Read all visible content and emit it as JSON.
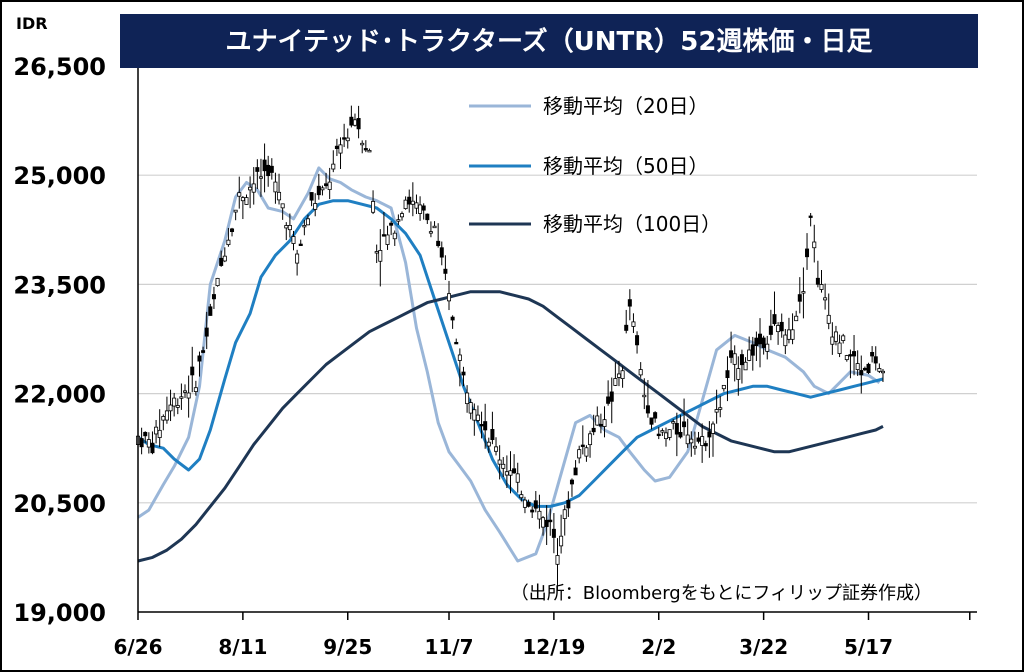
{
  "chart_data": {
    "type": "candlestick",
    "title": "ユナイテッド･トラクターズ（UNTR）52週株価・日足",
    "unit_label": "IDR",
    "source_note": "（出所：Bloombergをもとにフィリップ証券作成）",
    "ylim": [
      19000,
      26500
    ],
    "y_ticks": [
      "26,500",
      "25,000",
      "23,500",
      "22,000",
      "20,500",
      "19,000"
    ],
    "y_tick_values": [
      26500,
      25000,
      23500,
      22000,
      20500,
      19000
    ],
    "x_range": [
      0,
      232
    ],
    "x_ticks": [
      "6/26",
      "8/11",
      "9/25",
      "11/7",
      "12/19",
      "2/2",
      "3/22",
      "5/17"
    ],
    "x_tick_positions": [
      0,
      29,
      58,
      86,
      115,
      144,
      173,
      202
    ],
    "grid": true,
    "legend": [
      {
        "name": "移動平均（20日）",
        "color": "#9ab6d8"
      },
      {
        "name": "移動平均（50日）",
        "color": "#1f7fc2"
      },
      {
        "name": "移動平均（100日）",
        "color": "#1e3654"
      }
    ],
    "price_series": {
      "name": "UNTR close",
      "x": [
        0,
        4,
        8,
        12,
        16,
        20,
        24,
        28,
        32,
        36,
        40,
        44,
        48,
        52,
        56,
        60,
        64,
        66,
        70,
        74,
        78,
        82,
        86,
        88,
        90,
        94,
        98,
        102,
        106,
        110,
        114,
        116,
        118,
        122,
        126,
        130,
        134,
        136,
        140,
        144,
        148,
        152,
        156,
        160,
        164,
        168,
        172,
        176,
        180,
        184,
        186,
        188,
        192,
        196,
        200,
        204,
        206
      ],
      "values": [
        21400,
        21300,
        21800,
        22000,
        22200,
        23000,
        24000,
        24700,
        24900,
        25100,
        24600,
        23900,
        24600,
        24800,
        25400,
        25800,
        25300,
        24000,
        24200,
        24700,
        24500,
        24300,
        23300,
        22800,
        22200,
        21800,
        21300,
        21000,
        20700,
        20400,
        20200,
        19900,
        20300,
        21200,
        21500,
        21800,
        22400,
        23200,
        22000,
        21400,
        21500,
        21500,
        21300,
        21700,
        22400,
        22500,
        22700,
        22900,
        22800,
        23500,
        24500,
        23600,
        22900,
        22600,
        22300,
        22500,
        22200
      ]
    },
    "series": [
      {
        "name": "移動平均（20日）",
        "x": [
          0,
          3,
          7,
          10,
          14,
          17,
          20,
          24,
          27,
          30,
          33,
          36,
          40,
          43,
          47,
          50,
          53,
          56,
          59,
          63,
          66,
          70,
          74,
          77,
          80,
          83,
          86,
          89,
          92,
          96,
          100,
          105,
          110,
          113,
          117,
          121,
          125,
          129,
          133,
          136,
          140,
          143,
          147,
          152,
          156,
          160,
          165,
          170,
          174,
          179,
          184,
          187,
          191,
          194,
          197,
          202,
          205
        ],
        "values": [
          20300,
          20400,
          20750,
          21000,
          21400,
          22100,
          23500,
          24100,
          24700,
          24900,
          24800,
          24550,
          24500,
          24400,
          24750,
          25100,
          24950,
          24900,
          24800,
          24700,
          24650,
          24550,
          23800,
          22900,
          22300,
          21600,
          21200,
          21000,
          20800,
          20400,
          20100,
          19700,
          19800,
          20200,
          20900,
          21600,
          21700,
          21500,
          21400,
          21200,
          20950,
          20800,
          20850,
          21200,
          21900,
          22600,
          22800,
          22700,
          22600,
          22500,
          22300,
          22100,
          22000,
          22150,
          22300,
          22250,
          22150
        ]
      },
      {
        "name": "移動平均（50日）",
        "x": [
          0,
          3,
          7,
          10,
          14,
          17,
          20,
          24,
          27,
          31,
          34,
          38,
          42,
          46,
          50,
          54,
          58,
          62,
          66,
          70,
          74,
          78,
          82,
          86,
          90,
          94,
          98,
          102,
          106,
          110,
          114,
          118,
          122,
          126,
          130,
          134,
          138,
          142,
          146,
          150,
          154,
          158,
          162,
          166,
          170,
          174,
          178,
          182,
          186,
          190,
          194,
          198,
          202,
          206
        ],
        "values": [
          21400,
          21300,
          21250,
          21100,
          20950,
          21100,
          21500,
          22200,
          22700,
          23100,
          23600,
          23900,
          24100,
          24400,
          24600,
          24650,
          24650,
          24600,
          24550,
          24400,
          24200,
          23900,
          23300,
          22700,
          22100,
          21600,
          21100,
          20750,
          20550,
          20450,
          20450,
          20500,
          20600,
          20800,
          21000,
          21200,
          21400,
          21500,
          21600,
          21700,
          21800,
          21900,
          22000,
          22050,
          22100,
          22100,
          22050,
          22000,
          21950,
          22000,
          22050,
          22100,
          22150,
          22200
        ]
      },
      {
        "name": "移動平均（100日）",
        "x": [
          0,
          4,
          8,
          12,
          16,
          20,
          24,
          28,
          32,
          36,
          40,
          44,
          48,
          52,
          56,
          60,
          64,
          68,
          72,
          76,
          80,
          84,
          88,
          92,
          96,
          100,
          104,
          108,
          112,
          116,
          120,
          124,
          128,
          132,
          136,
          140,
          144,
          148,
          152,
          156,
          160,
          164,
          168,
          172,
          176,
          180,
          184,
          188,
          192,
          196,
          200,
          204,
          206
        ],
        "values": [
          19700,
          19750,
          19850,
          20000,
          20200,
          20450,
          20700,
          21000,
          21300,
          21550,
          21800,
          22000,
          22200,
          22400,
          22550,
          22700,
          22850,
          22950,
          23050,
          23150,
          23250,
          23300,
          23350,
          23400,
          23400,
          23400,
          23350,
          23300,
          23200,
          23050,
          22900,
          22750,
          22600,
          22450,
          22300,
          22150,
          22000,
          21850,
          21700,
          21550,
          21450,
          21350,
          21300,
          21250,
          21200,
          21200,
          21250,
          21300,
          21350,
          21400,
          21450,
          21500,
          21550
        ]
      }
    ]
  }
}
